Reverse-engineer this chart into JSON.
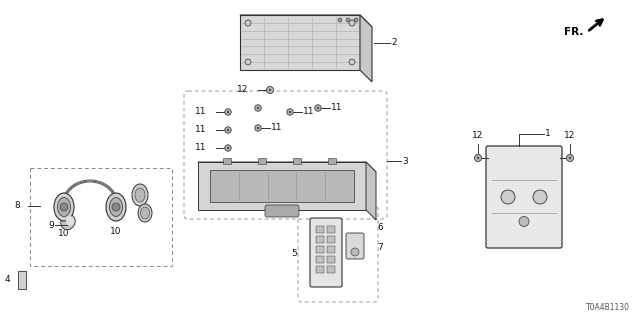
{
  "bg_color": "#ffffff",
  "diagram_code": "T0A4B1130",
  "line_color": "#333333",
  "light_line": "#777777",
  "text_color": "#111111",
  "fs": 6.5,
  "fs_code": 5.5
}
